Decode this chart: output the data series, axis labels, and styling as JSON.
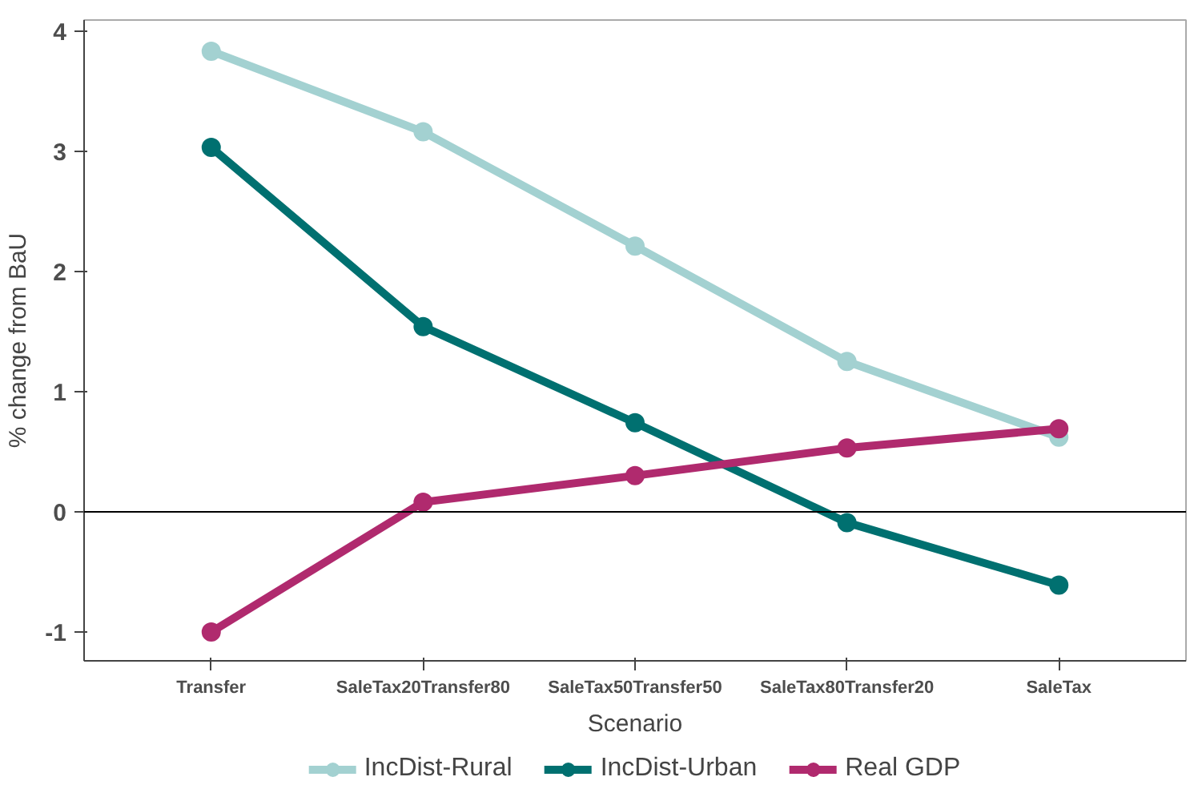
{
  "chart_data": {
    "type": "line",
    "xlabel": "Scenario",
    "ylabel": "% change from BaU",
    "categories": [
      "Transfer",
      "SaleTax20Transfer80",
      "SaleTax50Transfer50",
      "SaleTax80Transfer20",
      "SaleTax"
    ],
    "series": [
      {
        "name": "IncDist-Rural",
        "color": "#a3d1d1",
        "values": [
          3.83,
          3.16,
          2.21,
          1.25,
          0.62
        ]
      },
      {
        "name": "IncDist-Urban",
        "color": "#007070",
        "values": [
          3.03,
          1.54,
          0.74,
          -0.09,
          -0.61
        ]
      },
      {
        "name": "Real GDP",
        "color": "#b02a6e",
        "values": [
          -1.0,
          0.08,
          0.3,
          0.53,
          0.69
        ]
      }
    ],
    "ylim": [
      -1.24,
      4.09
    ],
    "yticks": [
      -1,
      0,
      1,
      2,
      3,
      4
    ],
    "ref_lines": [
      {
        "axis": "y",
        "value": 0,
        "color": "#000000"
      }
    ],
    "grid": false,
    "legend": "bottom",
    "marker": "circle",
    "line_style": "solid"
  }
}
